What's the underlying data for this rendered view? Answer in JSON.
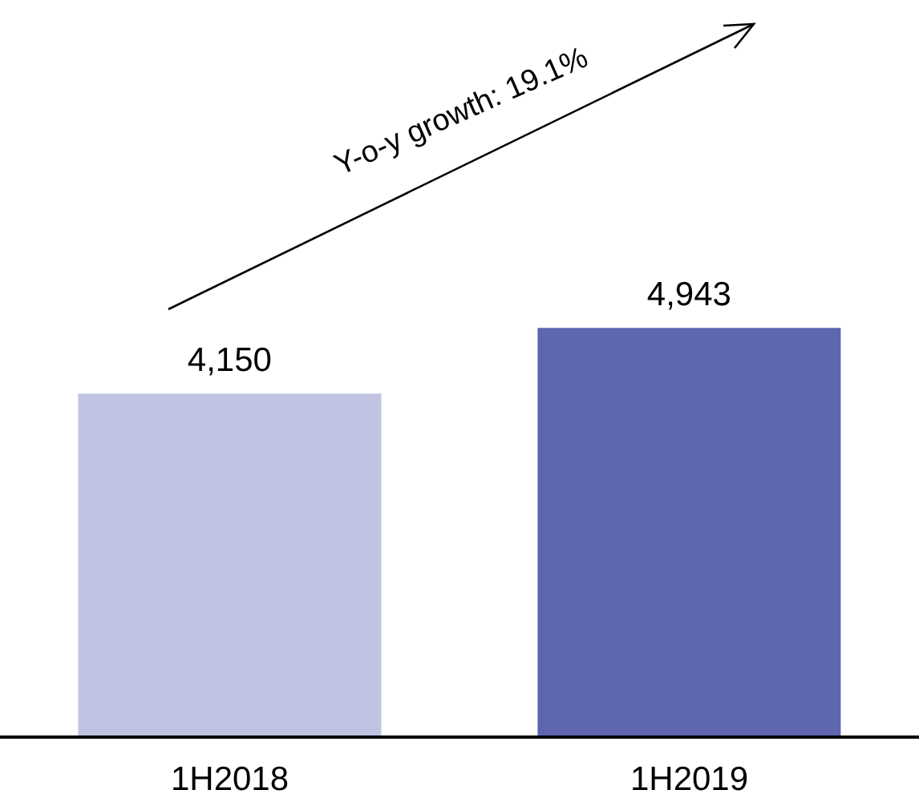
{
  "chart_data": {
    "type": "bar",
    "categories": [
      "1H2018",
      "1H2019"
    ],
    "values": [
      4150,
      4943
    ],
    "colors": [
      "#c0c4e2",
      "#5e66b0"
    ],
    "data_labels": true,
    "value_labels": [
      "4,150",
      "4,943"
    ],
    "annotations": [
      "Y-o-y growth: 19.1%"
    ]
  }
}
